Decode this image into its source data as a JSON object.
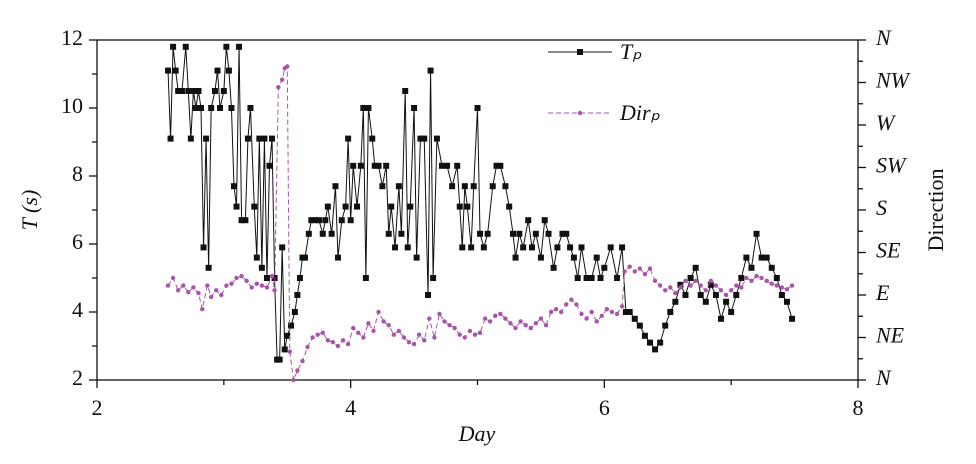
{
  "chart_data": {
    "type": "line",
    "xlabel": "Day",
    "ylabel": "T (s)",
    "y2label": "Direction",
    "xlim": [
      2,
      8
    ],
    "xticks": [
      2,
      4,
      6,
      8
    ],
    "ylim": [
      2,
      12
    ],
    "yticks": [
      2,
      4,
      6,
      8,
      10,
      12
    ],
    "y2lim": [
      0,
      360
    ],
    "y2ticks": [
      {
        "value": 0,
        "label": "N"
      },
      {
        "value": 45,
        "label": "NE"
      },
      {
        "value": 90,
        "label": "E"
      },
      {
        "value": 135,
        "label": "SE"
      },
      {
        "value": 180,
        "label": "S"
      },
      {
        "value": 225,
        "label": "SW"
      },
      {
        "value": 270,
        "label": "W"
      },
      {
        "value": 315,
        "label": "NW"
      },
      {
        "value": 360,
        "label": "N"
      }
    ],
    "legend": "top",
    "series": [
      {
        "name": "Tₚ",
        "color": "#111111",
        "marker": "square",
        "dash": "solid",
        "x": [
          2.56,
          2.58,
          2.6,
          2.62,
          2.64,
          2.67,
          2.7,
          2.72,
          2.74,
          2.76,
          2.78,
          2.8,
          2.82,
          2.84,
          2.86,
          2.88,
          2.9,
          2.93,
          2.95,
          2.97,
          3.0,
          3.02,
          3.04,
          3.06,
          3.08,
          3.1,
          3.12,
          3.14,
          3.17,
          3.19,
          3.21,
          3.24,
          3.26,
          3.28,
          3.3,
          3.32,
          3.34,
          3.36,
          3.38,
          3.4,
          3.42,
          3.44,
          3.46,
          3.48,
          3.5,
          3.53,
          3.56,
          3.58,
          3.6,
          3.62,
          3.64,
          3.67,
          3.69,
          3.72,
          3.75,
          3.78,
          3.8,
          3.82,
          3.85,
          3.88,
          3.9,
          3.93,
          3.96,
          3.98,
          4.0,
          4.02,
          4.05,
          4.08,
          4.1,
          4.12,
          4.14,
          4.17,
          4.19,
          4.22,
          4.25,
          4.28,
          4.3,
          4.32,
          4.35,
          4.38,
          4.4,
          4.43,
          4.45,
          4.47,
          4.5,
          4.52,
          4.55,
          4.58,
          4.61,
          4.63,
          4.65,
          4.68,
          4.72,
          4.76,
          4.8,
          4.84,
          4.86,
          4.88,
          4.9,
          4.92,
          4.95,
          4.97,
          5.0,
          5.02,
          5.05,
          5.08,
          5.12,
          5.15,
          5.18,
          5.22,
          5.25,
          5.28,
          5.3,
          5.33,
          5.36,
          5.4,
          5.43,
          5.46,
          5.5,
          5.53,
          5.56,
          5.6,
          5.63,
          5.67,
          5.7,
          5.73,
          5.76,
          5.79,
          5.82,
          5.86,
          5.9,
          5.94,
          5.97,
          6.0,
          6.05,
          6.1,
          6.14,
          6.17,
          6.2,
          6.24,
          6.28,
          6.32,
          6.36,
          6.4,
          6.44,
          6.48,
          6.52,
          6.56,
          6.6,
          6.64,
          6.68,
          6.72,
          6.76,
          6.8,
          6.84,
          6.88,
          6.92,
          6.96,
          7.0,
          7.04,
          7.08,
          7.12,
          7.16,
          7.2,
          7.24,
          7.28,
          7.32,
          7.36,
          7.4,
          7.44,
          7.48
        ],
        "values": [
          11.1,
          9.1,
          11.8,
          11.1,
          10.5,
          10.5,
          11.8,
          10.5,
          9.1,
          10.5,
          10.0,
          10.5,
          10.0,
          5.9,
          9.1,
          5.3,
          10.0,
          10.5,
          11.1,
          10.0,
          10.5,
          11.8,
          11.1,
          10.0,
          7.7,
          7.1,
          11.8,
          6.7,
          6.7,
          9.1,
          10.0,
          7.1,
          5.6,
          9.1,
          5.3,
          9.1,
          5.0,
          8.3,
          9.1,
          5.0,
          2.6,
          2.6,
          5.9,
          2.9,
          3.3,
          3.6,
          4.0,
          4.5,
          5.0,
          5.6,
          5.6,
          6.3,
          6.7,
          6.7,
          6.7,
          6.3,
          6.7,
          7.1,
          6.3,
          7.7,
          5.6,
          6.7,
          7.1,
          9.1,
          6.7,
          8.3,
          7.1,
          8.3,
          10.0,
          5.0,
          10.0,
          9.1,
          8.3,
          8.3,
          7.7,
          8.3,
          6.3,
          7.1,
          5.9,
          7.7,
          6.3,
          10.5,
          5.9,
          7.1,
          10.0,
          5.6,
          9.1,
          9.1,
          4.5,
          11.1,
          5.0,
          9.1,
          8.3,
          8.3,
          7.7,
          8.3,
          7.1,
          5.9,
          7.7,
          7.1,
          5.9,
          7.7,
          10.0,
          6.3,
          5.9,
          6.3,
          7.7,
          8.3,
          8.3,
          7.7,
          7.1,
          6.3,
          5.6,
          6.3,
          5.9,
          6.7,
          5.9,
          6.3,
          5.6,
          6.7,
          6.3,
          5.3,
          5.9,
          6.3,
          6.3,
          5.9,
          5.6,
          5.0,
          5.9,
          5.0,
          5.0,
          5.6,
          5.0,
          5.3,
          5.9,
          5.0,
          5.9,
          4.0,
          4.0,
          3.8,
          3.6,
          3.3,
          3.1,
          2.9,
          3.1,
          3.6,
          4.0,
          4.3,
          4.8,
          4.5,
          5.0,
          5.3,
          4.5,
          4.3,
          4.8,
          4.5,
          3.8,
          4.3,
          4.0,
          4.5,
          5.0,
          5.6,
          5.3,
          6.3,
          5.6,
          5.6,
          5.3,
          5.0,
          4.5,
          4.3,
          3.8
        ]
      },
      {
        "name": "Dirₚ",
        "color": "#a855a8",
        "marker": "circle",
        "dash": "dashed",
        "axis": "y2",
        "x": [
          2.56,
          2.6,
          2.64,
          2.68,
          2.72,
          2.76,
          2.8,
          2.83,
          2.87,
          2.9,
          2.94,
          2.98,
          3.02,
          3.06,
          3.1,
          3.14,
          3.18,
          3.22,
          3.26,
          3.3,
          3.34,
          3.38,
          3.4,
          3.43,
          3.46,
          3.48,
          3.5,
          3.52,
          3.55,
          3.58,
          3.62,
          3.66,
          3.7,
          3.74,
          3.78,
          3.82,
          3.86,
          3.9,
          3.94,
          3.98,
          4.02,
          4.06,
          4.1,
          4.14,
          4.18,
          4.22,
          4.26,
          4.3,
          4.34,
          4.38,
          4.42,
          4.46,
          4.5,
          4.54,
          4.58,
          4.62,
          4.66,
          4.7,
          4.74,
          4.78,
          4.82,
          4.86,
          4.9,
          4.94,
          4.98,
          5.02,
          5.06,
          5.1,
          5.14,
          5.18,
          5.22,
          5.26,
          5.3,
          5.34,
          5.38,
          5.42,
          5.46,
          5.5,
          5.54,
          5.58,
          5.62,
          5.66,
          5.7,
          5.74,
          5.78,
          5.82,
          5.86,
          5.9,
          5.94,
          5.98,
          6.02,
          6.06,
          6.1,
          6.14,
          6.16,
          6.2,
          6.24,
          6.28,
          6.32,
          6.36,
          6.4,
          6.44,
          6.48,
          6.52,
          6.56,
          6.6,
          6.64,
          6.68,
          6.72,
          6.76,
          6.8,
          6.84,
          6.88,
          6.92,
          6.96,
          7.0,
          7.04,
          7.08,
          7.12,
          7.16,
          7.2,
          7.24,
          7.28,
          7.32,
          7.36,
          7.4,
          7.44,
          7.48
        ],
        "values": [
          100,
          108,
          95,
          100,
          93,
          98,
          92,
          75,
          100,
          88,
          95,
          90,
          100,
          102,
          108,
          110,
          105,
          98,
          102,
          100,
          98,
          110,
          95,
          310,
          318,
          330,
          332,
          30,
          0,
          10,
          20,
          35,
          45,
          48,
          50,
          42,
          40,
          36,
          42,
          38,
          55,
          50,
          45,
          60,
          52,
          72,
          62,
          58,
          48,
          52,
          45,
          40,
          38,
          48,
          42,
          65,
          45,
          70,
          62,
          58,
          55,
          48,
          45,
          52,
          48,
          50,
          65,
          62,
          68,
          70,
          65,
          60,
          55,
          62,
          58,
          55,
          60,
          65,
          58,
          72,
          75,
          72,
          80,
          85,
          80,
          70,
          65,
          72,
          62,
          68,
          75,
          72,
          70,
          78,
          115,
          120,
          115,
          118,
          112,
          118,
          105,
          100,
          95,
          98,
          92,
          98,
          105,
          100,
          105,
          100,
          95,
          105,
          100,
          95,
          90,
          95,
          100,
          98,
          108,
          105,
          110,
          108,
          105,
          102,
          100,
          98,
          96,
          100
        ]
      }
    ]
  }
}
